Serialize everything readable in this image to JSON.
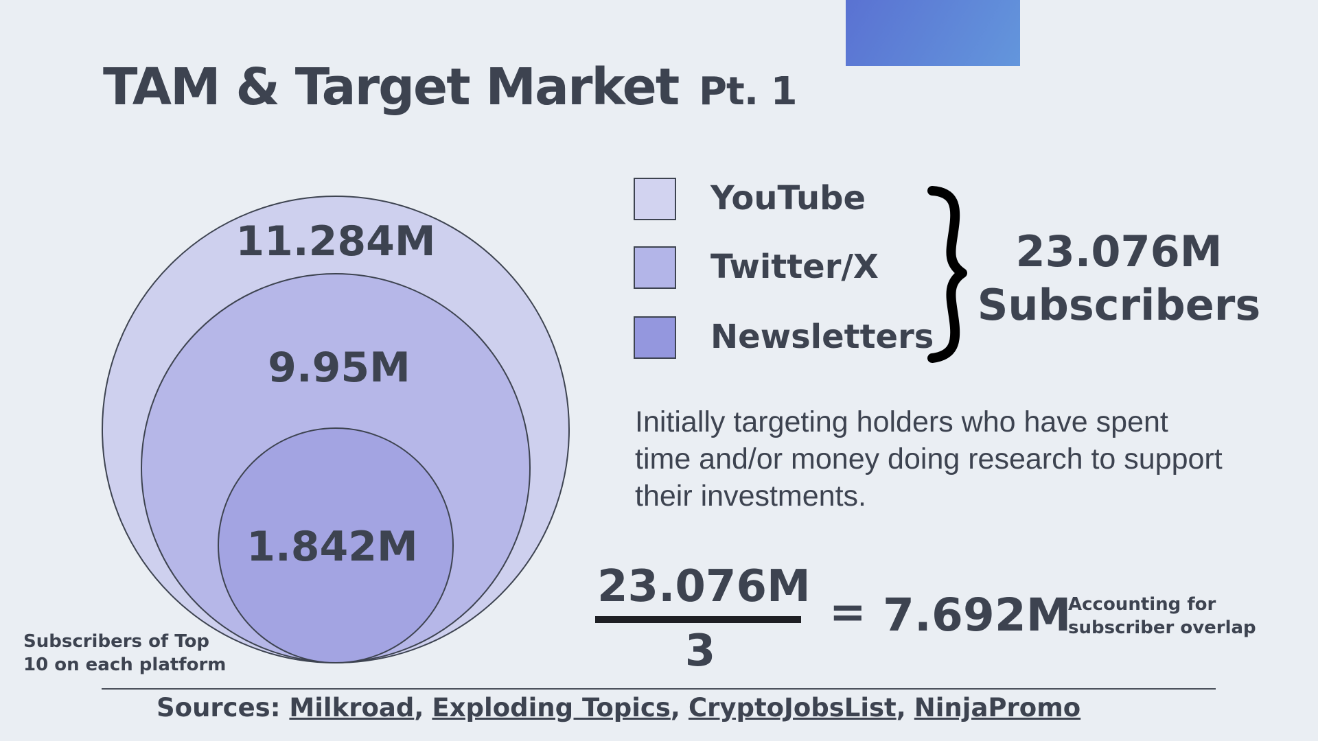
{
  "header": {
    "title": "TAM & Target Market",
    "subtitle": "Pt. 1"
  },
  "venn": {
    "outer": {
      "value": "11.284M",
      "color": "#ced0ee"
    },
    "middle": {
      "value": "9.95M",
      "color": "#b6b7e8"
    },
    "inner": {
      "value": "1.842M",
      "color": "#a3a4e2"
    },
    "note": "Subscribers of Top 10 on each platform"
  },
  "legend": {
    "items": [
      {
        "label": "YouTube",
        "color": "#d2d3f0"
      },
      {
        "label": "Twitter/X",
        "color": "#b3b5e8"
      },
      {
        "label": "Newsletters",
        "color": "#9497de"
      }
    ]
  },
  "total": {
    "value": "23.076M",
    "label": "Subscribers"
  },
  "description": "Initially targeting holders who have spent time and/or money doing research to support their investments.",
  "calculation": {
    "numerator": "23.076M",
    "denominator": "3",
    "equals": "=",
    "result": "7.692M",
    "note": "Accounting for subscriber overlap"
  },
  "sources": {
    "label": "Sources:",
    "links": [
      "Milkroad",
      "Exploding Topics",
      "CryptoJobsList",
      "NinjaPromo"
    ]
  }
}
